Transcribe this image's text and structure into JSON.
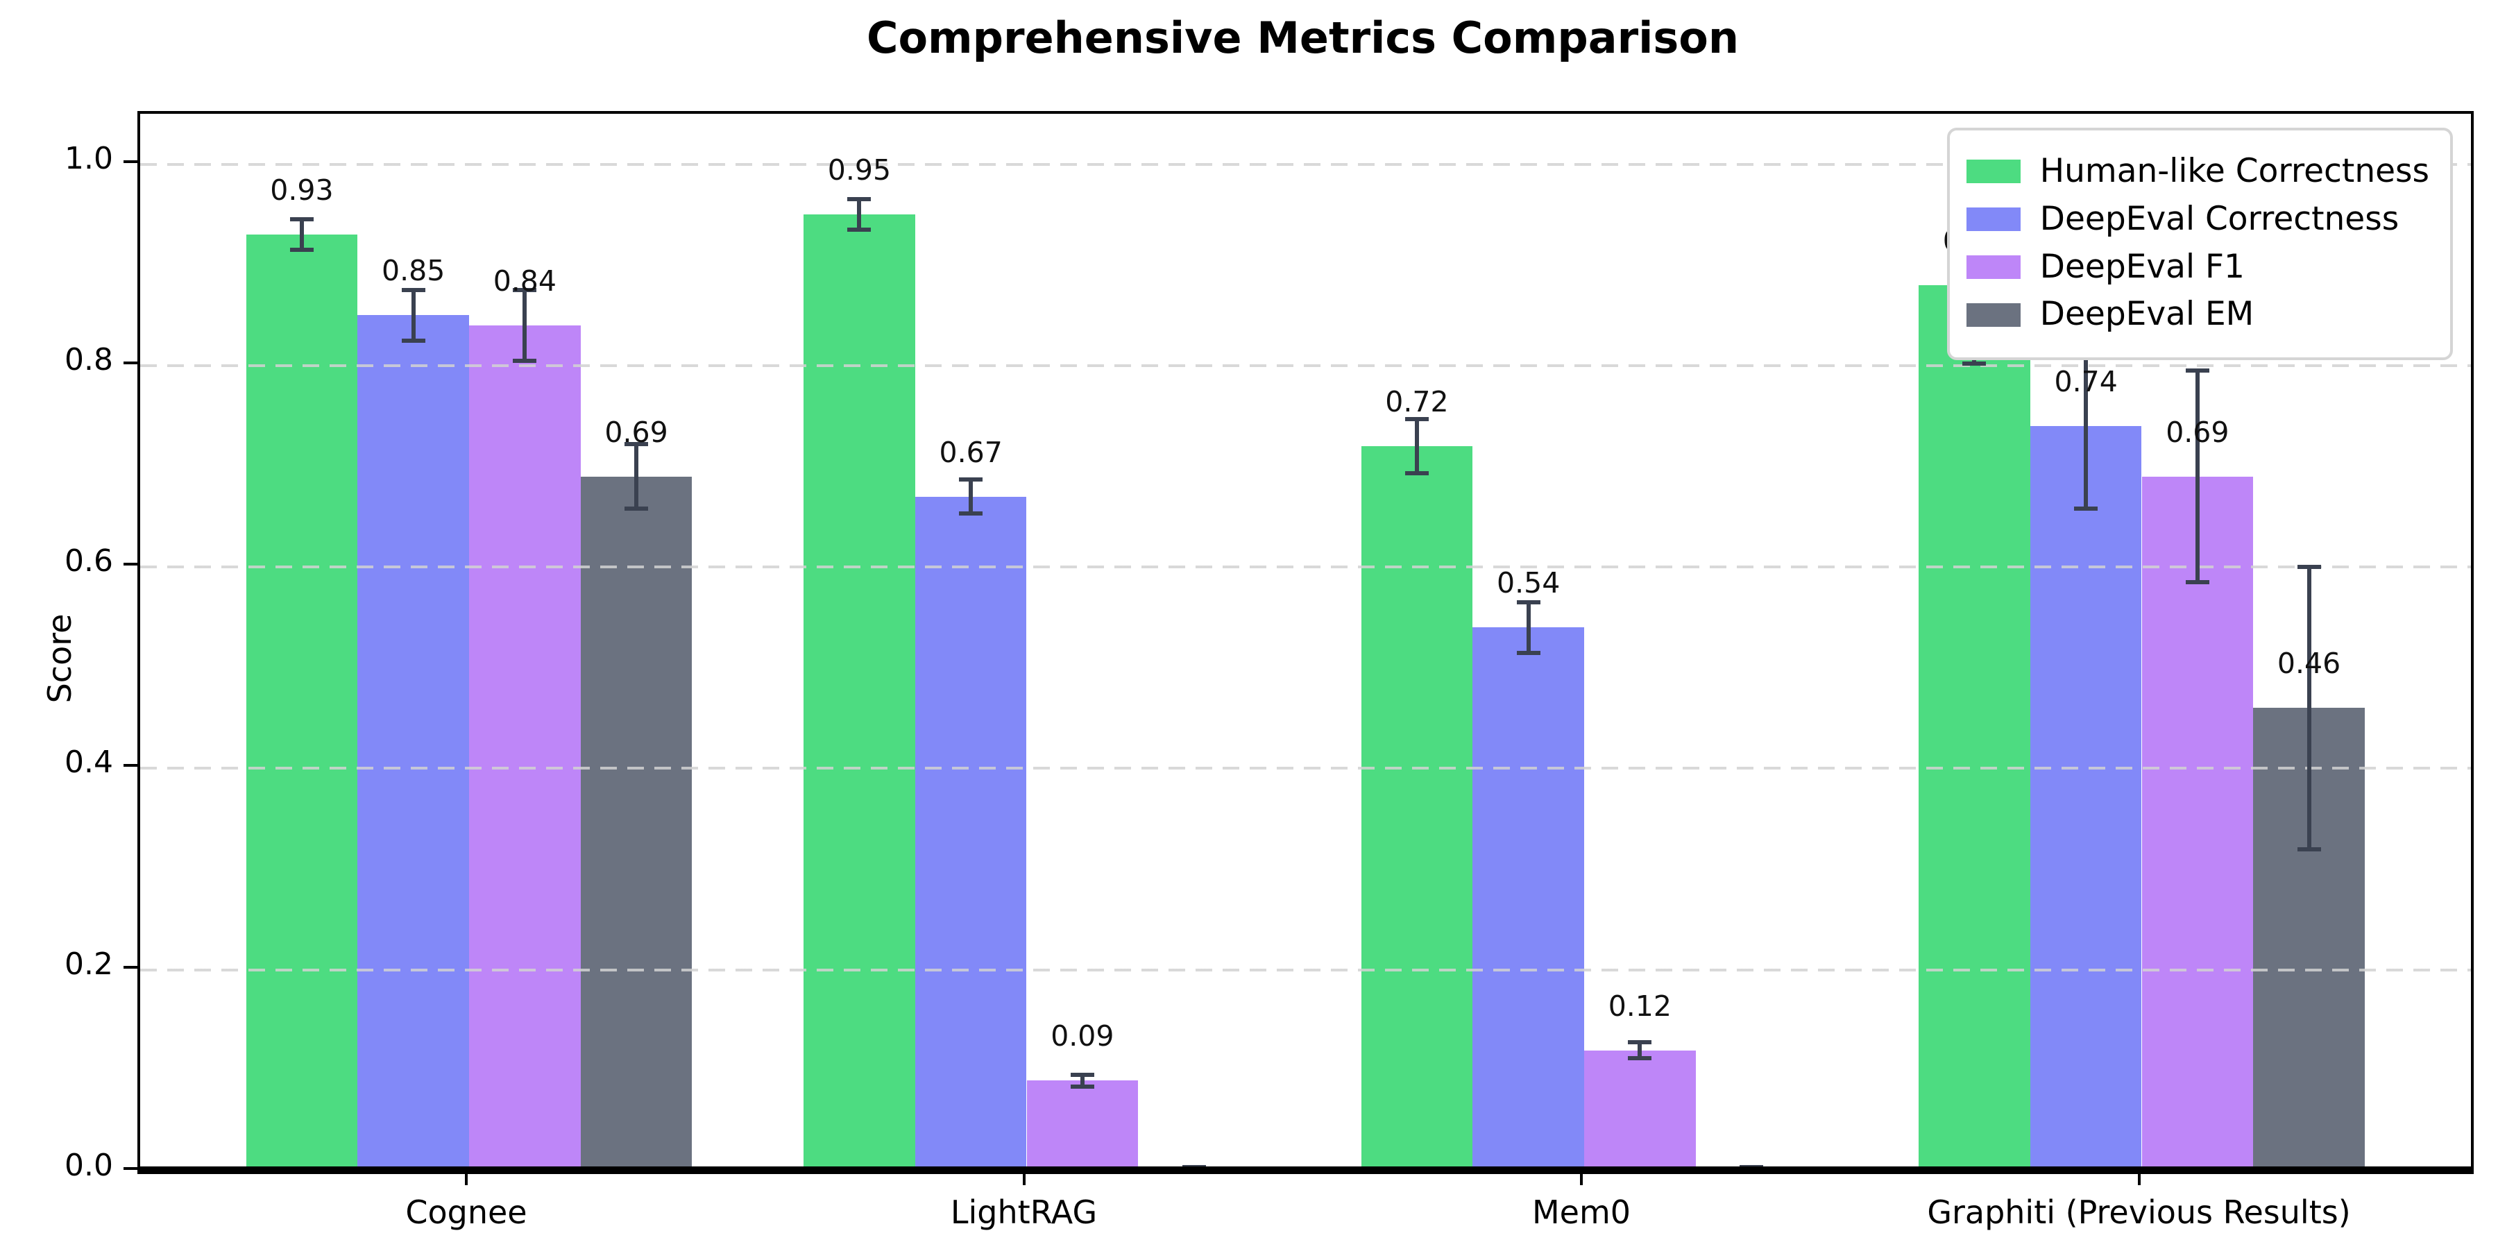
{
  "chart_data": {
    "type": "bar",
    "title": "Comprehensive Metrics Comparison",
    "ylabel": "Score",
    "xlabel": "",
    "categories": [
      "Cognee",
      "LightRAG",
      "Mem0",
      "Graphiti (Previous Results)"
    ],
    "series": [
      {
        "name": "Human-like Correctness",
        "color": "#4ddc81",
        "values": [
          0.93,
          0.95,
          0.72,
          0.88
        ],
        "errors": [
          0.015,
          0.015,
          0.027,
          0.078
        ],
        "bar_labels": [
          "0.93",
          "0.95",
          "0.72",
          "0.88"
        ]
      },
      {
        "name": "DeepEval Correctness",
        "color": "#8289f8",
        "values": [
          0.85,
          0.67,
          0.54,
          0.74
        ],
        "errors": [
          0.025,
          0.017,
          0.025,
          0.082
        ],
        "bar_labels": [
          "0.85",
          "0.67",
          "0.54",
          "0.74"
        ]
      },
      {
        "name": "DeepEval F1",
        "color": "#be86f8",
        "values": [
          0.84,
          0.09,
          0.12,
          0.69
        ],
        "errors": [
          0.035,
          0.006,
          0.008,
          0.105
        ],
        "bar_labels": [
          "0.84",
          "0.09",
          "0.12",
          "0.69"
        ]
      },
      {
        "name": "DeepEval EM",
        "color": "#6b7280",
        "values": [
          0.69,
          0.0,
          0.0,
          0.46
        ],
        "errors": [
          0.032,
          0.004,
          0.004,
          0.14
        ],
        "bar_labels": [
          "0.69",
          "",
          "",
          "0.46"
        ]
      }
    ],
    "yticks": [
      "0.0",
      "0.2",
      "0.4",
      "0.6",
      "0.8",
      "1.0"
    ],
    "ylim": [
      0,
      1.05
    ],
    "grid": "horizontal dashed, drawn over bars",
    "legend_position": "upper right",
    "error_bar_color": "#3a4150",
    "axis_color": "#000000",
    "background_color": "#ffffff"
  }
}
